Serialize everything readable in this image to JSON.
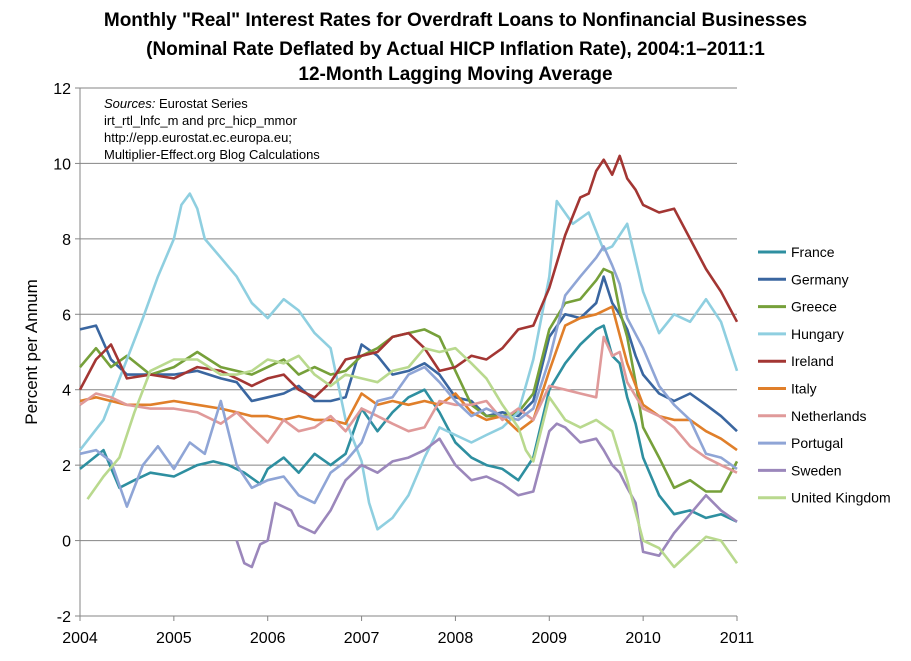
{
  "chart_data": {
    "type": "line",
    "title": [
      "Monthly \"Real\" Interest Rates for Overdraft Loans to Nonfinancial Businesses",
      "(Nominal Rate Deflated by Actual HICP Inflation Rate), 2004:1–2011:1",
      "12-Month Lagging Moving Average"
    ],
    "xlabel": "",
    "ylabel": "Percent per Annum",
    "xlim": [
      2004,
      2011
    ],
    "ylim": [
      -2,
      12
    ],
    "xticks": [
      "2004",
      "2005",
      "2006",
      "2007",
      "2008",
      "2009",
      "2010",
      "2011"
    ],
    "yticks": [
      "-2",
      "0",
      "2",
      "4",
      "6",
      "8",
      "10",
      "12"
    ],
    "grid": "horizontal",
    "legend": "right",
    "annotation": {
      "label": "Sources:",
      "text": "Eurostat Series",
      "lines": [
        "irt_rtl_lnfc_m and prc_hicp_mmor",
        "http://epp.eurostat.ec.europa.eu;",
        "Multiplier-Effect.org Blog Calculations"
      ]
    },
    "series": [
      {
        "name": "France",
        "color": "#2e8fa0",
        "x": [
          2004.0,
          2004.25,
          2004.42,
          2004.58,
          2004.75,
          2005.0,
          2005.25,
          2005.42,
          2005.58,
          2005.75,
          2005.92,
          2006.0,
          2006.17,
          2006.33,
          2006.5,
          2006.67,
          2006.83,
          2007.0,
          2007.17,
          2007.33,
          2007.5,
          2007.67,
          2007.83,
          2008.0,
          2008.17,
          2008.33,
          2008.5,
          2008.67,
          2008.83,
          2009.0,
          2009.17,
          2009.33,
          2009.5,
          2009.58,
          2009.67,
          2009.75,
          2009.83,
          2009.92,
          2010.0,
          2010.17,
          2010.33,
          2010.5,
          2010.67,
          2010.83,
          2011.0
        ],
        "y": [
          1.9,
          2.4,
          1.4,
          1.6,
          1.8,
          1.7,
          2.0,
          2.1,
          2.0,
          1.8,
          1.5,
          1.9,
          2.2,
          1.8,
          2.3,
          2.0,
          2.3,
          3.5,
          2.9,
          3.4,
          3.8,
          4.0,
          3.4,
          2.6,
          2.2,
          2.0,
          1.9,
          1.6,
          2.2,
          4.0,
          4.7,
          5.2,
          5.6,
          5.7,
          4.9,
          4.7,
          3.8,
          3.1,
          2.2,
          1.2,
          0.7,
          0.8,
          0.6,
          0.7,
          0.5
        ]
      },
      {
        "name": "Germany",
        "color": "#3a66a0",
        "x": [
          2004.0,
          2004.17,
          2004.33,
          2004.5,
          2004.75,
          2005.0,
          2005.25,
          2005.5,
          2005.67,
          2005.83,
          2006.0,
          2006.17,
          2006.33,
          2006.5,
          2006.67,
          2006.83,
          2007.0,
          2007.17,
          2007.33,
          2007.5,
          2007.67,
          2007.83,
          2008.0,
          2008.17,
          2008.33,
          2008.5,
          2008.67,
          2008.83,
          2009.0,
          2009.17,
          2009.33,
          2009.5,
          2009.58,
          2009.67,
          2009.75,
          2009.83,
          2009.92,
          2010.0,
          2010.17,
          2010.33,
          2010.5,
          2010.67,
          2010.83,
          2011.0
        ],
        "y": [
          5.6,
          5.7,
          4.8,
          4.4,
          4.4,
          4.4,
          4.5,
          4.3,
          4.2,
          3.7,
          3.8,
          3.9,
          4.1,
          3.7,
          3.7,
          3.8,
          5.2,
          4.9,
          4.4,
          4.5,
          4.7,
          4.4,
          3.8,
          3.7,
          3.3,
          3.4,
          3.3,
          3.7,
          5.4,
          6.0,
          5.9,
          6.3,
          7.0,
          6.3,
          6.0,
          5.6,
          4.9,
          4.4,
          3.9,
          3.7,
          3.9,
          3.6,
          3.3,
          2.9
        ]
      },
      {
        "name": "Greece",
        "color": "#76a03a",
        "x": [
          2004.0,
          2004.17,
          2004.33,
          2004.5,
          2004.75,
          2005.0,
          2005.25,
          2005.5,
          2005.67,
          2005.83,
          2006.0,
          2006.17,
          2006.33,
          2006.5,
          2006.67,
          2006.83,
          2007.0,
          2007.17,
          2007.33,
          2007.5,
          2007.67,
          2007.83,
          2008.0,
          2008.17,
          2008.33,
          2008.5,
          2008.67,
          2008.83,
          2009.0,
          2009.17,
          2009.33,
          2009.5,
          2009.58,
          2009.67,
          2009.75,
          2009.83,
          2009.92,
          2010.0,
          2010.17,
          2010.33,
          2010.5,
          2010.67,
          2010.83,
          2011.0
        ],
        "y": [
          4.6,
          5.1,
          4.6,
          4.9,
          4.4,
          4.6,
          5.0,
          4.6,
          4.5,
          4.4,
          4.6,
          4.8,
          4.4,
          4.6,
          4.4,
          4.5,
          4.9,
          5.1,
          5.4,
          5.5,
          5.6,
          5.4,
          4.5,
          3.6,
          3.3,
          3.3,
          3.4,
          3.9,
          5.6,
          6.3,
          6.4,
          6.9,
          7.2,
          7.1,
          6.1,
          5.4,
          4.2,
          3.0,
          2.2,
          1.4,
          1.6,
          1.3,
          1.3,
          2.1
        ]
      },
      {
        "name": "Hungary",
        "color": "#8fcfe0",
        "x": [
          2004.0,
          2004.25,
          2004.5,
          2004.67,
          2004.83,
          2005.0,
          2005.08,
          2005.17,
          2005.25,
          2005.33,
          2005.5,
          2005.67,
          2005.83,
          2006.0,
          2006.17,
          2006.33,
          2006.5,
          2006.67,
          2006.83,
          2007.0,
          2007.08,
          2007.17,
          2007.33,
          2007.5,
          2007.67,
          2007.83,
          2008.0,
          2008.17,
          2008.33,
          2008.5,
          2008.67,
          2008.83,
          2009.0,
          2009.08,
          2009.25,
          2009.42,
          2009.58,
          2009.67,
          2009.83,
          2010.0,
          2010.17,
          2010.33,
          2010.5,
          2010.67,
          2010.83,
          2011.0
        ],
        "y": [
          2.4,
          3.2,
          4.8,
          5.9,
          7.0,
          8.0,
          8.9,
          9.2,
          8.8,
          8.0,
          7.5,
          7.0,
          6.3,
          5.9,
          6.4,
          6.1,
          5.5,
          5.1,
          3.2,
          2.1,
          1.0,
          0.3,
          0.6,
          1.2,
          2.2,
          3.0,
          2.8,
          2.6,
          2.8,
          3.0,
          3.4,
          4.8,
          7.0,
          9.0,
          8.4,
          8.7,
          7.7,
          7.8,
          8.4,
          6.6,
          5.5,
          6.0,
          5.8,
          6.4,
          5.8,
          4.5
        ]
      },
      {
        "name": "Ireland",
        "color": "#a33633",
        "x": [
          2004.0,
          2004.17,
          2004.33,
          2004.5,
          2004.75,
          2005.0,
          2005.25,
          2005.5,
          2005.67,
          2005.83,
          2006.0,
          2006.17,
          2006.33,
          2006.5,
          2006.67,
          2006.83,
          2007.0,
          2007.17,
          2007.33,
          2007.5,
          2007.67,
          2007.83,
          2008.0,
          2008.17,
          2008.33,
          2008.5,
          2008.67,
          2008.83,
          2009.0,
          2009.17,
          2009.33,
          2009.42,
          2009.5,
          2009.58,
          2009.67,
          2009.75,
          2009.83,
          2009.92,
          2010.0,
          2010.17,
          2010.33,
          2010.5,
          2010.67,
          2010.83,
          2011.0
        ],
        "y": [
          4.0,
          4.8,
          5.2,
          4.3,
          4.4,
          4.3,
          4.6,
          4.5,
          4.3,
          4.1,
          4.3,
          4.4,
          4.0,
          3.8,
          4.2,
          4.8,
          4.9,
          5.0,
          5.4,
          5.5,
          5.1,
          4.5,
          4.6,
          4.9,
          4.8,
          5.1,
          5.6,
          5.7,
          6.7,
          8.1,
          9.1,
          9.2,
          9.8,
          10.1,
          9.7,
          10.2,
          9.6,
          9.3,
          8.9,
          8.7,
          8.8,
          8.0,
          7.2,
          6.6,
          5.8
        ]
      },
      {
        "name": "Italy",
        "color": "#e07f2a",
        "x": [
          2004.0,
          2004.17,
          2004.33,
          2004.5,
          2004.75,
          2005.0,
          2005.25,
          2005.5,
          2005.67,
          2005.83,
          2006.0,
          2006.17,
          2006.33,
          2006.5,
          2006.67,
          2006.83,
          2007.0,
          2007.17,
          2007.33,
          2007.5,
          2007.67,
          2007.83,
          2008.0,
          2008.17,
          2008.33,
          2008.5,
          2008.67,
          2008.83,
          2009.0,
          2009.17,
          2009.33,
          2009.5,
          2009.67,
          2009.83,
          2010.0,
          2010.17,
          2010.33,
          2010.5,
          2010.67,
          2010.83,
          2011.0
        ],
        "y": [
          3.7,
          3.8,
          3.7,
          3.6,
          3.6,
          3.7,
          3.6,
          3.5,
          3.4,
          3.3,
          3.3,
          3.2,
          3.3,
          3.2,
          3.2,
          3.1,
          3.9,
          3.6,
          3.7,
          3.6,
          3.7,
          3.6,
          3.9,
          3.4,
          3.2,
          3.3,
          2.9,
          3.2,
          4.5,
          5.7,
          5.9,
          6.0,
          6.2,
          4.7,
          3.6,
          3.3,
          3.2,
          3.2,
          2.9,
          2.7,
          2.4
        ]
      },
      {
        "name": "Netherlands",
        "color": "#e09a9a",
        "x": [
          2004.0,
          2004.17,
          2004.33,
          2004.5,
          2004.75,
          2005.0,
          2005.25,
          2005.5,
          2005.67,
          2005.83,
          2006.0,
          2006.17,
          2006.33,
          2006.5,
          2006.67,
          2006.83,
          2007.0,
          2007.17,
          2007.33,
          2007.5,
          2007.67,
          2007.83,
          2008.0,
          2008.17,
          2008.33,
          2008.5,
          2008.67,
          2008.83,
          2009.0,
          2009.17,
          2009.33,
          2009.5,
          2009.58,
          2009.67,
          2009.75,
          2009.83,
          2010.0,
          2010.17,
          2010.33,
          2010.5,
          2010.67,
          2010.83,
          2011.0
        ],
        "y": [
          3.6,
          3.9,
          3.8,
          3.6,
          3.5,
          3.5,
          3.4,
          3.1,
          3.4,
          3.0,
          2.6,
          3.2,
          2.9,
          3.0,
          3.3,
          2.9,
          3.5,
          3.3,
          3.1,
          2.9,
          3.0,
          3.7,
          3.6,
          3.6,
          3.7,
          3.2,
          3.5,
          3.2,
          4.1,
          4.0,
          3.9,
          3.8,
          5.4,
          4.9,
          5.0,
          4.2,
          3.5,
          3.3,
          3.0,
          2.5,
          2.2,
          2.0,
          1.8
        ]
      },
      {
        "name": "Portugal",
        "color": "#8fa5d6",
        "x": [
          2004.0,
          2004.17,
          2004.33,
          2004.5,
          2004.67,
          2004.83,
          2005.0,
          2005.17,
          2005.33,
          2005.5,
          2005.67,
          2005.83,
          2006.0,
          2006.17,
          2006.33,
          2006.5,
          2006.67,
          2006.83,
          2007.0,
          2007.17,
          2007.33,
          2007.5,
          2007.67,
          2007.83,
          2008.0,
          2008.17,
          2008.33,
          2008.5,
          2008.67,
          2008.83,
          2009.0,
          2009.17,
          2009.33,
          2009.5,
          2009.58,
          2009.67,
          2009.75,
          2009.83,
          2010.0,
          2010.17,
          2010.33,
          2010.5,
          2010.67,
          2010.83,
          2011.0
        ],
        "y": [
          2.3,
          2.4,
          2.1,
          0.9,
          2.0,
          2.5,
          1.9,
          2.6,
          2.3,
          3.7,
          2.0,
          1.4,
          1.6,
          1.7,
          1.2,
          1.0,
          1.8,
          2.1,
          2.6,
          3.7,
          3.8,
          4.4,
          4.6,
          4.2,
          3.7,
          3.3,
          3.5,
          3.3,
          3.2,
          3.5,
          4.8,
          6.5,
          7.0,
          7.5,
          7.8,
          7.3,
          6.8,
          5.9,
          5.1,
          4.1,
          3.6,
          3.2,
          2.3,
          2.2,
          1.9
        ]
      },
      {
        "name": "Sweden",
        "color": "#9b87bb",
        "x": [
          2005.67,
          2005.75,
          2005.83,
          2005.92,
          2006.0,
          2006.08,
          2006.25,
          2006.33,
          2006.5,
          2006.67,
          2006.83,
          2007.0,
          2007.17,
          2007.33,
          2007.5,
          2007.67,
          2007.83,
          2008.0,
          2008.17,
          2008.33,
          2008.5,
          2008.67,
          2008.83,
          2009.0,
          2009.08,
          2009.17,
          2009.33,
          2009.5,
          2009.58,
          2009.67,
          2009.75,
          2009.83,
          2009.92,
          2010.0,
          2010.17,
          2010.33,
          2010.5,
          2010.67,
          2010.83,
          2011.0
        ],
        "y": [
          0.0,
          -0.6,
          -0.7,
          -0.1,
          0.0,
          1.0,
          0.8,
          0.4,
          0.2,
          0.8,
          1.6,
          2.0,
          1.8,
          2.1,
          2.2,
          2.4,
          2.7,
          2.0,
          1.6,
          1.7,
          1.5,
          1.2,
          1.3,
          2.9,
          3.1,
          3.0,
          2.6,
          2.7,
          2.4,
          2.0,
          1.8,
          1.4,
          1.0,
          -0.3,
          -0.4,
          0.2,
          0.7,
          1.2,
          0.8,
          0.5
        ]
      },
      {
        "name": "United Kingdom",
        "color": "#b9d98e",
        "x": [
          2004.08,
          2004.25,
          2004.42,
          2004.58,
          2004.75,
          2005.0,
          2005.25,
          2005.5,
          2005.67,
          2005.83,
          2006.0,
          2006.17,
          2006.33,
          2006.5,
          2006.67,
          2006.83,
          2007.0,
          2007.17,
          2007.33,
          2007.5,
          2007.67,
          2007.83,
          2008.0,
          2008.17,
          2008.33,
          2008.5,
          2008.67,
          2008.75,
          2008.83,
          2009.0,
          2009.17,
          2009.33,
          2009.5,
          2009.67,
          2009.83,
          2010.0,
          2010.17,
          2010.33,
          2010.5,
          2010.67,
          2010.83,
          2011.0
        ],
        "y": [
          1.1,
          1.7,
          2.2,
          3.4,
          4.5,
          4.8,
          4.8,
          4.4,
          4.4,
          4.5,
          4.8,
          4.7,
          4.9,
          4.4,
          4.1,
          4.4,
          4.3,
          4.2,
          4.5,
          4.6,
          5.1,
          5.0,
          5.1,
          4.7,
          4.3,
          3.6,
          3.0,
          2.4,
          2.1,
          3.8,
          3.2,
          3.0,
          3.2,
          2.9,
          1.6,
          0.0,
          -0.2,
          -0.7,
          -0.3,
          0.1,
          0.0,
          -0.6
        ]
      }
    ]
  }
}
